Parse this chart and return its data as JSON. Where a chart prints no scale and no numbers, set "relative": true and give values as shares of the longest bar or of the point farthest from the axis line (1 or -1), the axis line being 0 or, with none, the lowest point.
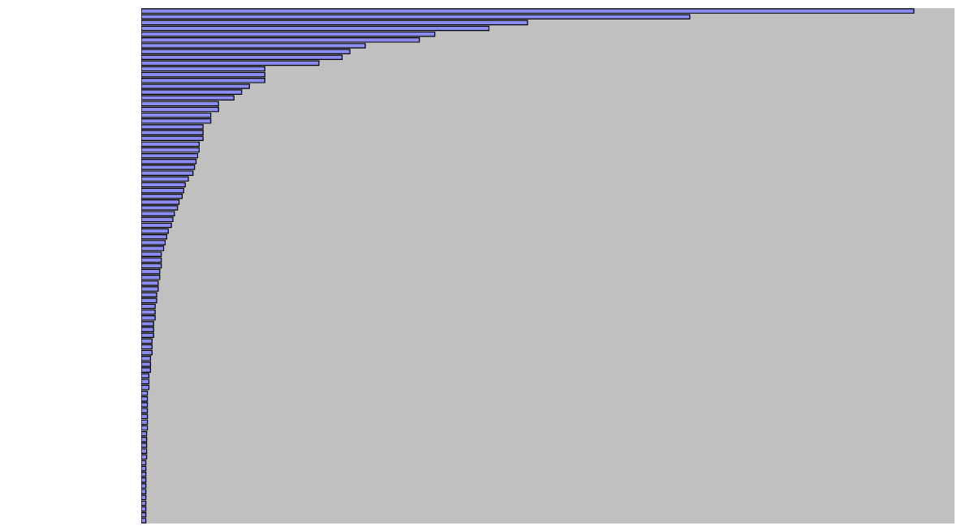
{
  "chart_data": {
    "type": "bar",
    "orientation": "horizontal",
    "relative": true,
    "categories": [
      null,
      null,
      null,
      null,
      null,
      null,
      null,
      null,
      null,
      null,
      null,
      null,
      null,
      null,
      null,
      null,
      null,
      null,
      null,
      null,
      null,
      null,
      null,
      null,
      null,
      null,
      null,
      null,
      null,
      null,
      null,
      null,
      null,
      null,
      null,
      null,
      null,
      null,
      null,
      null,
      null,
      null,
      null,
      null,
      null,
      null,
      null,
      null,
      null,
      null,
      null,
      null,
      null,
      null,
      null,
      null,
      null,
      null,
      null,
      null,
      null,
      null,
      null,
      null,
      null,
      null,
      null,
      null,
      null,
      null,
      null,
      null,
      null,
      null,
      null,
      null,
      null,
      null,
      null,
      null,
      null,
      null,
      null,
      null,
      null,
      null,
      null,
      null,
      null
    ],
    "color": "#8c8cf0",
    "values": [
      1,
      0.71,
      0.5,
      0.45,
      0.38,
      0.36,
      0.29,
      0.27,
      0.26,
      0.23,
      0.16,
      0.16,
      0.16,
      0.14,
      0.13,
      0.12,
      0.1,
      0.1,
      0.09,
      0.09,
      0.08,
      0.08,
      0.08,
      0.075,
      0.075,
      0.073,
      0.071,
      0.069,
      0.067,
      0.061,
      0.057,
      0.055,
      0.053,
      0.049,
      0.047,
      0.043,
      0.041,
      0.039,
      0.035,
      0.033,
      0.031,
      0.029,
      0.026,
      0.026,
      0.026,
      0.024,
      0.024,
      0.022,
      0.022,
      0.02,
      0.02,
      0.018,
      0.018,
      0.018,
      0.016,
      0.016,
      0.016,
      0.014,
      0.014,
      0.014,
      0.012,
      0.012,
      0.012,
      0.01,
      0.01,
      0.01,
      0.008,
      0.008,
      0.008,
      0.008,
      0.008,
      0.008,
      0.008,
      0.007,
      0.007,
      0.007,
      0.007,
      0.007,
      0.006,
      0.006,
      0.006,
      0.006,
      0.006,
      0.006,
      0.006,
      0.006,
      0.006,
      0.006,
      0.006
    ]
  }
}
